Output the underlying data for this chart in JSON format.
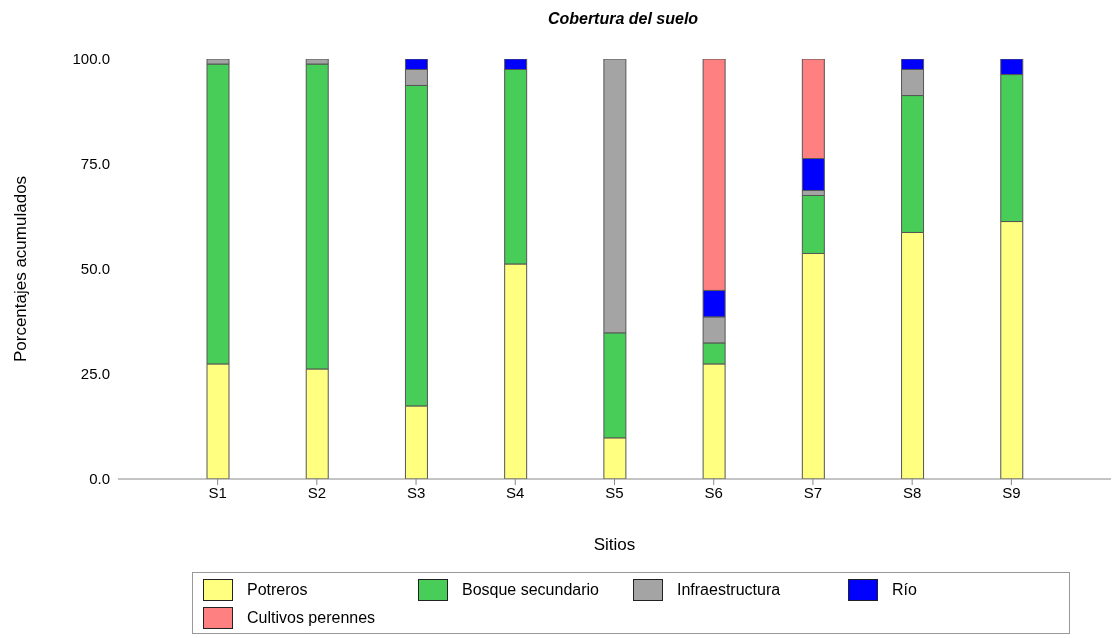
{
  "chart_data": {
    "type": "bar",
    "title": "Cobertura del suelo",
    "xlabel": "Sitios",
    "ylabel": "Porcentajes acumulados",
    "stacked": true,
    "legend": "bottom",
    "grid": false,
    "categories": [
      "S1",
      "S2",
      "S3",
      "S4",
      "S5",
      "S6",
      "S7",
      "S8",
      "S9"
    ],
    "ylim": [
      0,
      100
    ],
    "yticks": [
      {
        "value": 0,
        "label": "0.0"
      },
      {
        "value": 25,
        "label": "25.0"
      },
      {
        "value": 50,
        "label": "50.0"
      },
      {
        "value": 75,
        "label": "75.0"
      },
      {
        "value": 100,
        "label": "100.0"
      }
    ],
    "series": [
      {
        "name": "Potreros",
        "color": "#ffff80",
        "values": [
          27.4,
          26.2,
          17.4,
          51.2,
          9.8,
          27.4,
          53.7,
          58.7,
          61.3
        ]
      },
      {
        "name": "Bosque secundario",
        "color": "#48cd58",
        "values": [
          71.4,
          72.6,
          76.3,
          46.3,
          25.0,
          5.0,
          13.8,
          32.6,
          35.0
        ]
      },
      {
        "name": "Infraestructura",
        "color": "#a4a4a4",
        "values": [
          1.2,
          1.2,
          3.8,
          0,
          65.2,
          6.2,
          1.2,
          6.2,
          0
        ]
      },
      {
        "name": "Río",
        "color": "#0000ff",
        "values": [
          0,
          0,
          2.5,
          2.5,
          0,
          6.3,
          7.6,
          2.5,
          3.7
        ]
      },
      {
        "name": "Cultivos perennes",
        "color": "#ff8080",
        "values": [
          0,
          0,
          0,
          0,
          0,
          55.1,
          23.7,
          0,
          0
        ]
      }
    ]
  }
}
